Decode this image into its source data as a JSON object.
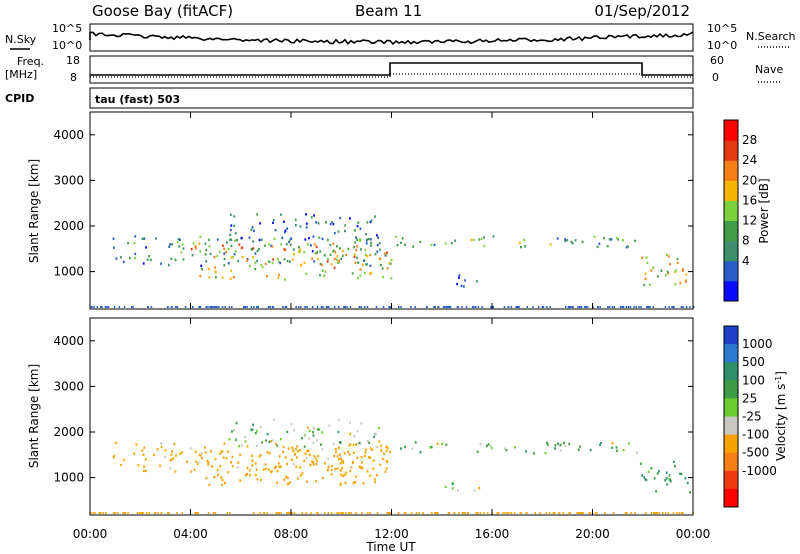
{
  "header": {
    "station": "Goose Bay (fitACF)",
    "beam": "Beam 11",
    "date": "01/Sep/2012"
  },
  "top_panels": {
    "nsky_label": "N.Sky",
    "nsearch_label": "N.Search",
    "noise_ticks": [
      "10^5",
      "10^0"
    ],
    "freq_label": "Freq.",
    "freq_unit": "[MHz]",
    "freq_ticks": [
      "18",
      "8"
    ],
    "nave_label": "Nave",
    "nave_ticks": [
      "60",
      "0"
    ],
    "cpid_label": "CPID",
    "cpid_text": "tau (fast) 503"
  },
  "chart_data": [
    {
      "type": "heatmap",
      "title": "",
      "xlabel": "Time UT",
      "ylabel": "Slant Range [km]",
      "xlim": [
        0,
        24
      ],
      "ylim": [
        180,
        4500
      ],
      "x_ticks": [
        "00:00",
        "04:00",
        "08:00",
        "12:00",
        "16:00",
        "20:00",
        "00:00"
      ],
      "y_ticks": [
        1000,
        2000,
        3000,
        4000
      ],
      "colorbar": {
        "label": "Power [dB]",
        "ticks": [
          "28",
          "24",
          "20",
          "16",
          "12",
          "8",
          "4"
        ],
        "colors": [
          "#0a0aff",
          "#2a5cc8",
          "#3d8f6d",
          "#3f9d4a",
          "#7bd13b",
          "#f4b400",
          "#f57f17",
          "#e33812",
          "#ff0000"
        ]
      },
      "echo_regions": [
        {
          "t": [
            0.9,
            12.0
          ],
          "r": [
            1150,
            1800
          ],
          "power_db": 10
        },
        {
          "t": [
            4.0,
            12.0
          ],
          "r": [
            850,
            1650
          ],
          "power_db": 20
        },
        {
          "t": [
            5.5,
            11.5
          ],
          "r": [
            1700,
            2300
          ],
          "power_db": 8
        },
        {
          "t": [
            12.0,
            21.8
          ],
          "r": [
            1550,
            1800
          ],
          "power_db": 12
        },
        {
          "t": [
            21.8,
            24.0
          ],
          "r": [
            700,
            1400
          ],
          "power_db": 18
        },
        {
          "t": [
            14.0,
            15.5
          ],
          "r": [
            700,
            950
          ],
          "power_db": 6
        }
      ]
    },
    {
      "type": "heatmap",
      "title": "",
      "xlabel": "Time UT",
      "ylabel": "Slant Range [km]",
      "xlim": [
        0,
        24
      ],
      "ylim": [
        180,
        4500
      ],
      "x_ticks": [
        "00:00",
        "04:00",
        "08:00",
        "12:00",
        "16:00",
        "20:00",
        "00:00"
      ],
      "y_ticks": [
        1000,
        2000,
        3000,
        4000
      ],
      "colorbar": {
        "label": "Velocity [m s^-1]",
        "ticks": [
          "1000",
          "500",
          "100",
          "25",
          "-25",
          "-100",
          "-500",
          "-1000"
        ],
        "colors": [
          "#1e3fc8",
          "#2c7ad0",
          "#2f8f6a",
          "#3e9b48",
          "#6ccc30",
          "#c8c8c0",
          "#f5a300",
          "#f57f17",
          "#ee3a12",
          "#ff0000"
        ]
      },
      "echo_regions": [
        {
          "t": [
            0.9,
            12.0
          ],
          "r": [
            1150,
            1800
          ],
          "velocity": -200
        },
        {
          "t": [
            4.0,
            12.0
          ],
          "r": [
            850,
            1650
          ],
          "velocity": -300
        },
        {
          "t": [
            5.5,
            11.5
          ],
          "r": [
            1700,
            2300
          ],
          "velocity": 0
        },
        {
          "t": [
            12.0,
            21.8
          ],
          "r": [
            1550,
            1800
          ],
          "velocity": 0
        },
        {
          "t": [
            21.8,
            24.0
          ],
          "r": [
            700,
            1400
          ],
          "velocity": 150
        },
        {
          "t": [
            14.0,
            15.5
          ],
          "r": [
            700,
            950
          ],
          "velocity": 0
        }
      ]
    }
  ]
}
